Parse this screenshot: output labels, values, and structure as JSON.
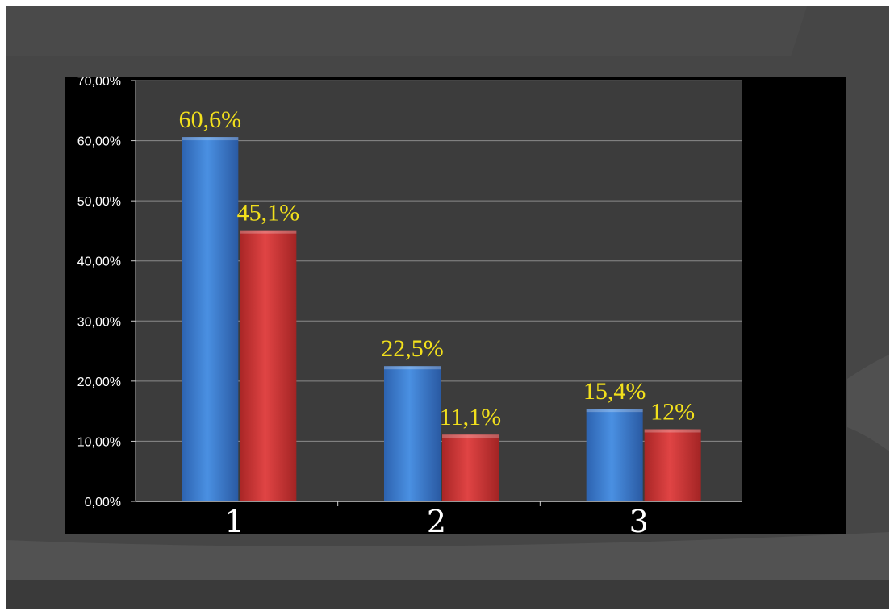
{
  "chart_data": {
    "type": "bar",
    "categories": [
      "1",
      "2",
      "3"
    ],
    "series": [
      {
        "values": [
          60.6,
          22.5,
          15.4
        ],
        "labels": [
          "60,6%",
          "22,5%",
          "15,4%"
        ]
      },
      {
        "values": [
          45.1,
          11.1,
          12.0
        ],
        "labels": [
          "45,1%",
          "11,1%",
          "12%"
        ]
      }
    ],
    "ylim": [
      0,
      70
    ],
    "yticks": [
      0,
      10,
      20,
      30,
      40,
      50,
      60,
      70
    ],
    "ytick_labels": [
      "0,00%",
      "10,00%",
      "20,00%",
      "30,00%",
      "40,00%",
      "50,00%",
      "60,00%",
      "70,00%"
    ],
    "grid": true,
    "colors": {
      "series": [
        "#3a7fd4",
        "#d63a3a"
      ],
      "data_labels": "#f2e01c",
      "plot_background": "#3c3c3c",
      "outer_background": "#000000",
      "slide_background": "#464646",
      "gridlines": "#8a8a8a"
    }
  }
}
